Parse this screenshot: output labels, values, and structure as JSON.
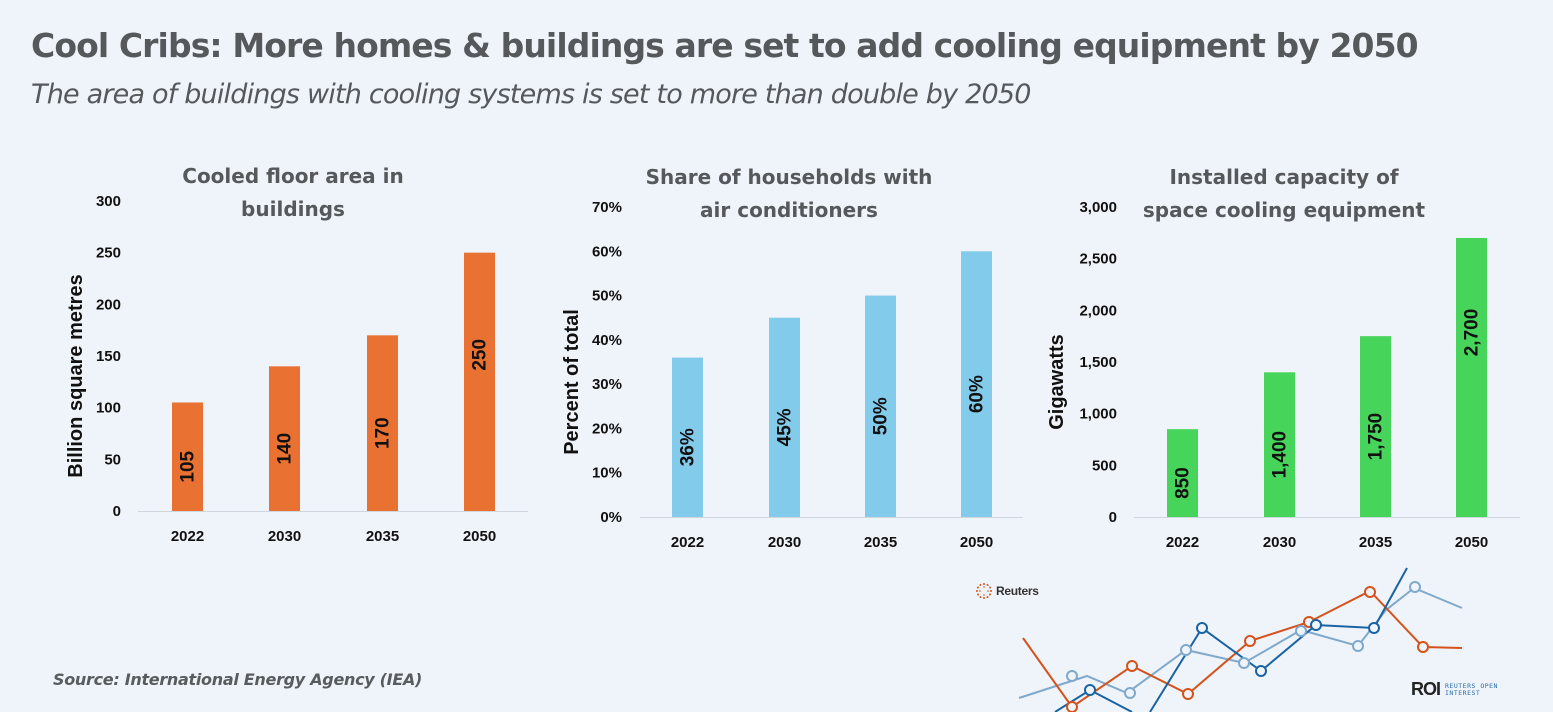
{
  "header": {
    "title": "Cool Cribs: More homes & buildings are set to add cooling equipment by 2050",
    "subtitle": "The area of buildings with cooling systems is set to more than double by 2050"
  },
  "footer": {
    "source": "Source: International Energy Agency (IEA)",
    "reuters_logo": "Reuters",
    "roi_logo": "ROI",
    "roi_sub_line1": "REUTERS OPEN",
    "roi_sub_line2": "INTEREST"
  },
  "colors": {
    "background": "#eff4fa",
    "orange": "#e97132",
    "lightblue": "#83cbeb",
    "green": "#47d45a",
    "deco_orange": "#d5521c",
    "deco_blue": "#1a63a3",
    "deco_lightblue": "#7fa9cc"
  },
  "chart_data": [
    {
      "type": "bar",
      "title": "Cooled floor area in buildings",
      "title_lines": [
        "Cooled floor area in",
        "buildings"
      ],
      "categories": [
        "2022",
        "2030",
        "2035",
        "2050"
      ],
      "values": [
        105,
        140,
        170,
        250
      ],
      "data_labels": [
        "105",
        "140",
        "170",
        "250"
      ],
      "xlabel": "",
      "ylabel": "Billion square metres",
      "ylim": [
        0,
        300
      ],
      "yticks": [
        0,
        50,
        100,
        150,
        200,
        250,
        300
      ],
      "ytick_labels": [
        "0",
        "50",
        "100",
        "150",
        "200",
        "250",
        "300"
      ],
      "color": "#e97132",
      "grid": false,
      "legend": "none"
    },
    {
      "type": "bar",
      "title": "Share of households with air conditioners",
      "title_lines": [
        "Share of households with",
        "air conditioners"
      ],
      "categories": [
        "2022",
        "2030",
        "2035",
        "2050"
      ],
      "values": [
        36,
        45,
        50,
        60
      ],
      "data_labels": [
        "36%",
        "45%",
        "50%",
        "60%"
      ],
      "xlabel": "",
      "ylabel": "Percent of total",
      "ylim": [
        0,
        70
      ],
      "yticks": [
        0,
        10,
        20,
        30,
        40,
        50,
        60,
        70
      ],
      "ytick_labels": [
        "0%",
        "10%",
        "20%",
        "30%",
        "40%",
        "50%",
        "60%",
        "70%"
      ],
      "color": "#83cbeb",
      "grid": false,
      "legend": "none"
    },
    {
      "type": "bar",
      "title": "Installed capacity of space cooling equipment",
      "title_lines": [
        "Installed capacity of",
        "space cooling equipment"
      ],
      "categories": [
        "2022",
        "2030",
        "2035",
        "2050"
      ],
      "values": [
        850,
        1400,
        1750,
        2700
      ],
      "data_labels": [
        "850",
        "1,400",
        "1,750",
        "2,700"
      ],
      "xlabel": "",
      "ylabel": "Gigawatts",
      "ylim": [
        0,
        3000
      ],
      "yticks": [
        0,
        500,
        1000,
        1500,
        2000,
        2500,
        3000
      ],
      "ytick_labels": [
        "0",
        "500",
        "1,000",
        "1,500",
        "2,000",
        "2,500",
        "3,000"
      ],
      "color": "#47d45a",
      "grid": false,
      "legend": "none"
    }
  ]
}
